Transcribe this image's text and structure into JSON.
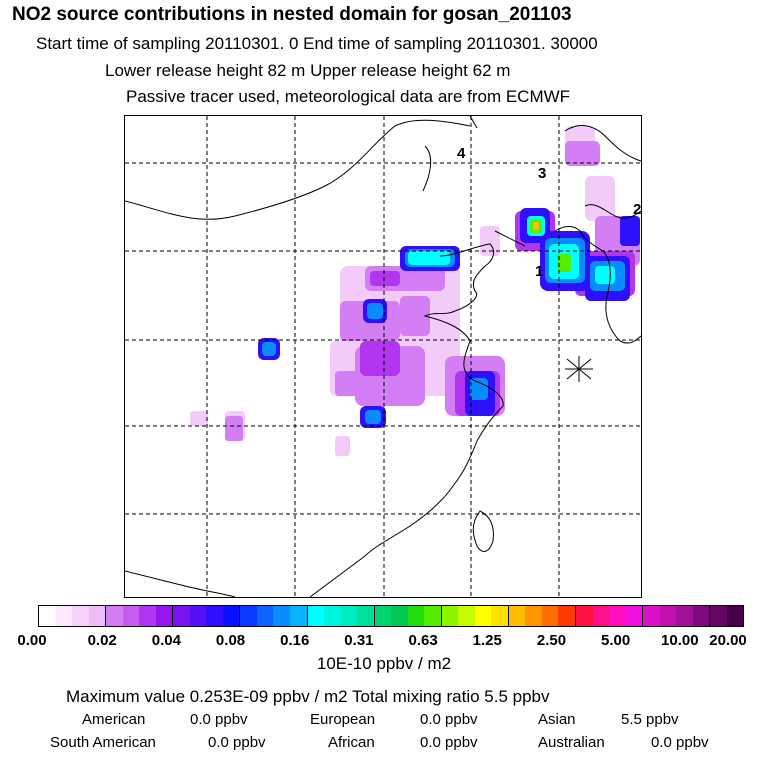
{
  "header": {
    "title": "NO2 source contributions in nested domain for gosan_201103",
    "sampling": "Start time of sampling 20110301.     0     End time of sampling 20110301. 30000",
    "release": "Lower release height   82 m          Upper release height   62 m",
    "note": "Passive tracer used, meteorological data are from ECMWF"
  },
  "map": {
    "labels": [
      "4",
      "3",
      "2",
      "1"
    ],
    "receptor": "Gosan station marker"
  },
  "colorbar": {
    "ticks": [
      "0.00",
      "0.02",
      "0.04",
      "0.08",
      "0.16",
      "0.31",
      "0.63",
      "1.25",
      "2.50",
      "5.00",
      "10.00",
      "20.00"
    ],
    "colors": [
      "#ffffff",
      "#fbe8fd",
      "#f6d2fb",
      "#efbcf8",
      "#d47ef5",
      "#c65af3",
      "#b236f0",
      "#9a14ee",
      "#7a12f0",
      "#5510f5",
      "#2e10fa",
      "#0810ff",
      "#0a3cff",
      "#0c64ff",
      "#0a8cff",
      "#08b4ff",
      "#00ffff",
      "#00f5e0",
      "#00ebc0",
      "#00e09a",
      "#00d46e",
      "#00c850",
      "#22dc10",
      "#55ee00",
      "#8cf400",
      "#c6fa00",
      "#ffff00",
      "#ffe000",
      "#ffbc00",
      "#ff9800",
      "#ff6e00",
      "#ff3a00",
      "#ff1040",
      "#ff1090",
      "#ff10c0",
      "#f010e0",
      "#d810c8",
      "#c010b0",
      "#a01098",
      "#800880",
      "#640864",
      "#480048"
    ],
    "unit": "10E-10 ppbv / m2"
  },
  "summary": {
    "max_line": "Maximum value  0.253E-09 ppbv / m2     Total mixing ratio       5.5 ppbv",
    "american_label": "American",
    "american_value": "0.0 ppbv",
    "european_label": "European",
    "european_value": "0.0 ppbv",
    "asian_label": "Asian",
    "asian_value": "5.5 ppbv",
    "south_american_label": "South American",
    "south_american_value": "0.0 ppbv",
    "african_label": "African",
    "african_value": "0.0 ppbv",
    "australian_label": "Australian",
    "australian_value": "0.0 ppbv"
  }
}
